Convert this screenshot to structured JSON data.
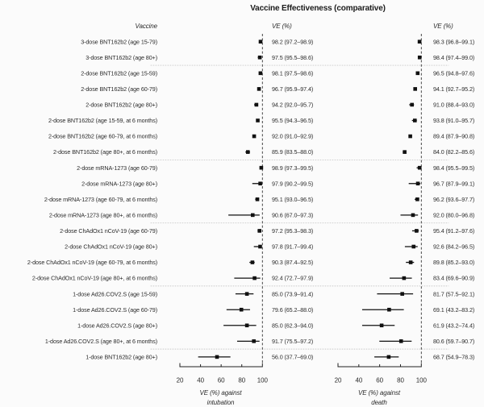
{
  "title": "Vaccine Effectiveness (comparative)",
  "columns": {
    "vaccine": "Vaccine",
    "ve_left": "VE (%)",
    "ve_right": "VE (%)"
  },
  "chart_data": {
    "type": "forest",
    "xlim": [
      20,
      100
    ],
    "ticks": [
      20,
      40,
      60,
      80,
      100
    ],
    "reference_x": 100,
    "value_format": "{ve} ({lo}–{hi})",
    "panels": [
      {
        "key": "intubation",
        "axis_title": [
          "VE (%) against",
          "intubation"
        ]
      },
      {
        "key": "death",
        "axis_title": [
          "VE (%) against",
          "death"
        ]
      }
    ],
    "group_separators_after": [
      2,
      8,
      12,
      16,
      20
    ],
    "rows": [
      {
        "label": "3-dose BNT162b2 (age 15-79)",
        "intubation": {
          "ve": 98.2,
          "lo": 97.2,
          "hi": 98.9
        },
        "death": {
          "ve": 98.3,
          "lo": 96.8,
          "hi": 99.1
        }
      },
      {
        "label": "3-dose BNT162b2 (age 80+)",
        "intubation": {
          "ve": 97.5,
          "lo": 95.5,
          "hi": 98.6
        },
        "death": {
          "ve": 98.4,
          "lo": 97.4,
          "hi": 99.0
        }
      },
      {
        "label": "2-dose BNT162b2 (age 15-59)",
        "intubation": {
          "ve": 98.1,
          "lo": 97.5,
          "hi": 98.6
        },
        "death": {
          "ve": 96.5,
          "lo": 94.8,
          "hi": 97.6
        }
      },
      {
        "label": "2-dose BNT162b2 (age 60-79)",
        "intubation": {
          "ve": 96.7,
          "lo": 95.9,
          "hi": 97.4
        },
        "death": {
          "ve": 94.1,
          "lo": 92.7,
          "hi": 95.2
        }
      },
      {
        "label": "2-dose BNT162b2 (age 80+)",
        "intubation": {
          "ve": 94.2,
          "lo": 92.0,
          "hi": 95.7
        },
        "death": {
          "ve": 91.0,
          "lo": 88.4,
          "hi": 93.0
        }
      },
      {
        "label": "2-dose BNT162b2 (age 15-59, at 6 months)",
        "intubation": {
          "ve": 95.5,
          "lo": 94.3,
          "hi": 96.5
        },
        "death": {
          "ve": 93.8,
          "lo": 91.0,
          "hi": 95.7
        }
      },
      {
        "label": "2-dose BNT162b2 (age 60-79, at 6 months)",
        "intubation": {
          "ve": 92.0,
          "lo": 91.0,
          "hi": 92.9
        },
        "death": {
          "ve": 89.4,
          "lo": 87.9,
          "hi": 90.8
        }
      },
      {
        "label": "2-dose BNT162b2 (age 80+, at 6 months)",
        "intubation": {
          "ve": 85.9,
          "lo": 83.5,
          "hi": 88.0
        },
        "death": {
          "ve": 84.0,
          "lo": 82.2,
          "hi": 85.6
        }
      },
      {
        "label": "2-dose mRNA-1273 (age 60-79)",
        "intubation": {
          "ve": 98.9,
          "lo": 97.3,
          "hi": 99.5
        },
        "death": {
          "ve": 98.4,
          "lo": 95.5,
          "hi": 99.5
        }
      },
      {
        "label": "2-dose mRNA-1273 (age 80+)",
        "intubation": {
          "ve": 97.9,
          "lo": 90.2,
          "hi": 99.5
        },
        "death": {
          "ve": 96.7,
          "lo": 87.9,
          "hi": 99.1
        }
      },
      {
        "label": "2-dose mRNA-1273 (age 60-79, at 6 months)",
        "intubation": {
          "ve": 95.1,
          "lo": 93.0,
          "hi": 96.5
        },
        "death": {
          "ve": 96.2,
          "lo": 93.6,
          "hi": 97.7
        }
      },
      {
        "label": "2-dose mRNA-1273 (age 80+, at 6 months)",
        "intubation": {
          "ve": 90.6,
          "lo": 67.0,
          "hi": 97.3
        },
        "death": {
          "ve": 92.0,
          "lo": 80.0,
          "hi": 96.8
        }
      },
      {
        "label": "2-dose ChAdOx1 nCoV-19 (age 60-79)",
        "intubation": {
          "ve": 97.2,
          "lo": 95.3,
          "hi": 98.3
        },
        "death": {
          "ve": 95.4,
          "lo": 91.2,
          "hi": 97.6
        }
      },
      {
        "label": "2-dose ChAdOx1 nCoV-19 (age 80+)",
        "intubation": {
          "ve": 97.8,
          "lo": 91.7,
          "hi": 99.4
        },
        "death": {
          "ve": 92.6,
          "lo": 84.2,
          "hi": 96.5
        }
      },
      {
        "label": "2-dose ChAdOx1 nCoV-19 (age 60-79, at 6 months)",
        "intubation": {
          "ve": 90.3,
          "lo": 87.4,
          "hi": 92.5
        },
        "death": {
          "ve": 89.8,
          "lo": 85.2,
          "hi": 93.0
        }
      },
      {
        "label": "2-dose ChAdOx1 nCoV-19 (age 80+, at 6 months)",
        "intubation": {
          "ve": 92.4,
          "lo": 72.7,
          "hi": 97.9
        },
        "death": {
          "ve": 83.4,
          "lo": 69.6,
          "hi": 90.9
        }
      },
      {
        "label": "1-dose Ad26.COV2.S (age 15-59)",
        "intubation": {
          "ve": 85.0,
          "lo": 73.9,
          "hi": 91.4
        },
        "death": {
          "ve": 81.7,
          "lo": 57.5,
          "hi": 92.1
        }
      },
      {
        "label": "1-dose Ad26.COV2.S (age 60-79)",
        "intubation": {
          "ve": 79.6,
          "lo": 65.2,
          "hi": 88.0
        },
        "death": {
          "ve": 69.1,
          "lo": 43.2,
          "hi": 83.2
        }
      },
      {
        "label": "1-dose Ad26.COV2.S (age 80+)",
        "intubation": {
          "ve": 85.0,
          "lo": 62.3,
          "hi": 94.0
        },
        "death": {
          "ve": 61.9,
          "lo": 43.2,
          "hi": 74.4
        }
      },
      {
        "label": "1-dose Ad26.COV2.S (age 80+, at 6 months)",
        "intubation": {
          "ve": 91.7,
          "lo": 75.5,
          "hi": 97.2
        },
        "death": {
          "ve": 80.6,
          "lo": 59.7,
          "hi": 90.7
        }
      },
      {
        "label": "1-dose BNT162b2 (age 80+)",
        "intubation": {
          "ve": 56.0,
          "lo": 37.7,
          "hi": 69.0
        },
        "death": {
          "ve": 68.7,
          "lo": 54.9,
          "hi": 78.3
        }
      }
    ]
  },
  "colors": {
    "marker": "#111111",
    "ci_line": "#111111",
    "axis": "#222222",
    "reference_line": "#333333",
    "separator": "#c8c8c8",
    "text": "#2b2b2b",
    "background": "#fbfbfb"
  }
}
